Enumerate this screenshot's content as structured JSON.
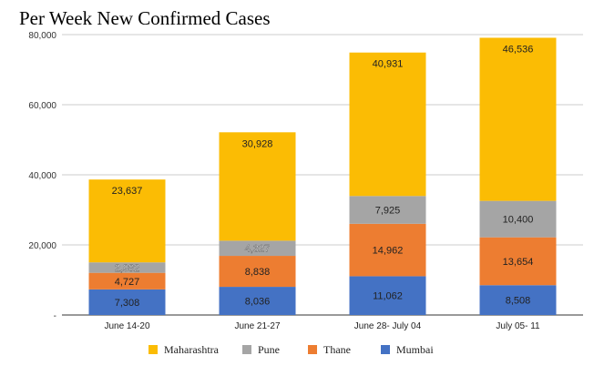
{
  "chart_data": {
    "type": "bar",
    "stacked": true,
    "title": "Per Week New Confirmed Cases",
    "xlabel": "",
    "ylabel": "",
    "categories": [
      "June 14-20",
      "June 21-27",
      "June 28- July 04",
      "July 05- 11"
    ],
    "ylim": [
      0,
      80000
    ],
    "yticks": [
      0,
      20000,
      40000,
      60000,
      80000
    ],
    "ytick_labels": [
      "-",
      "20,000",
      "40,000",
      "60,000",
      "80,000"
    ],
    "grid": true,
    "legend_position": "bottom",
    "series": [
      {
        "name": "Mumbai",
        "color": "#4472C4",
        "values": [
          7308,
          8036,
          11062,
          8508
        ],
        "labels": [
          "7,308",
          "8,036",
          "11,062",
          "8,508"
        ]
      },
      {
        "name": "Thane",
        "color": "#ED7D31",
        "values": [
          4727,
          8838,
          14962,
          13654
        ],
        "labels": [
          "4,727",
          "8,838",
          "14,962",
          "13,654"
        ]
      },
      {
        "name": "Pune",
        "color": "#A5A5A5",
        "values": [
          2982,
          4327,
          7925,
          10400
        ],
        "labels": [
          "2,982",
          "4,327",
          "7,925",
          "10,400"
        ]
      },
      {
        "name": "Maharashtra",
        "color": "#FBBC04",
        "values": [
          23637,
          30928,
          40931,
          46536
        ],
        "labels": [
          "23,637",
          "30,928",
          "40,931",
          "46,536"
        ]
      }
    ],
    "legend_order": [
      "Maharashtra",
      "Pune",
      "Thane",
      "Mumbai"
    ]
  }
}
